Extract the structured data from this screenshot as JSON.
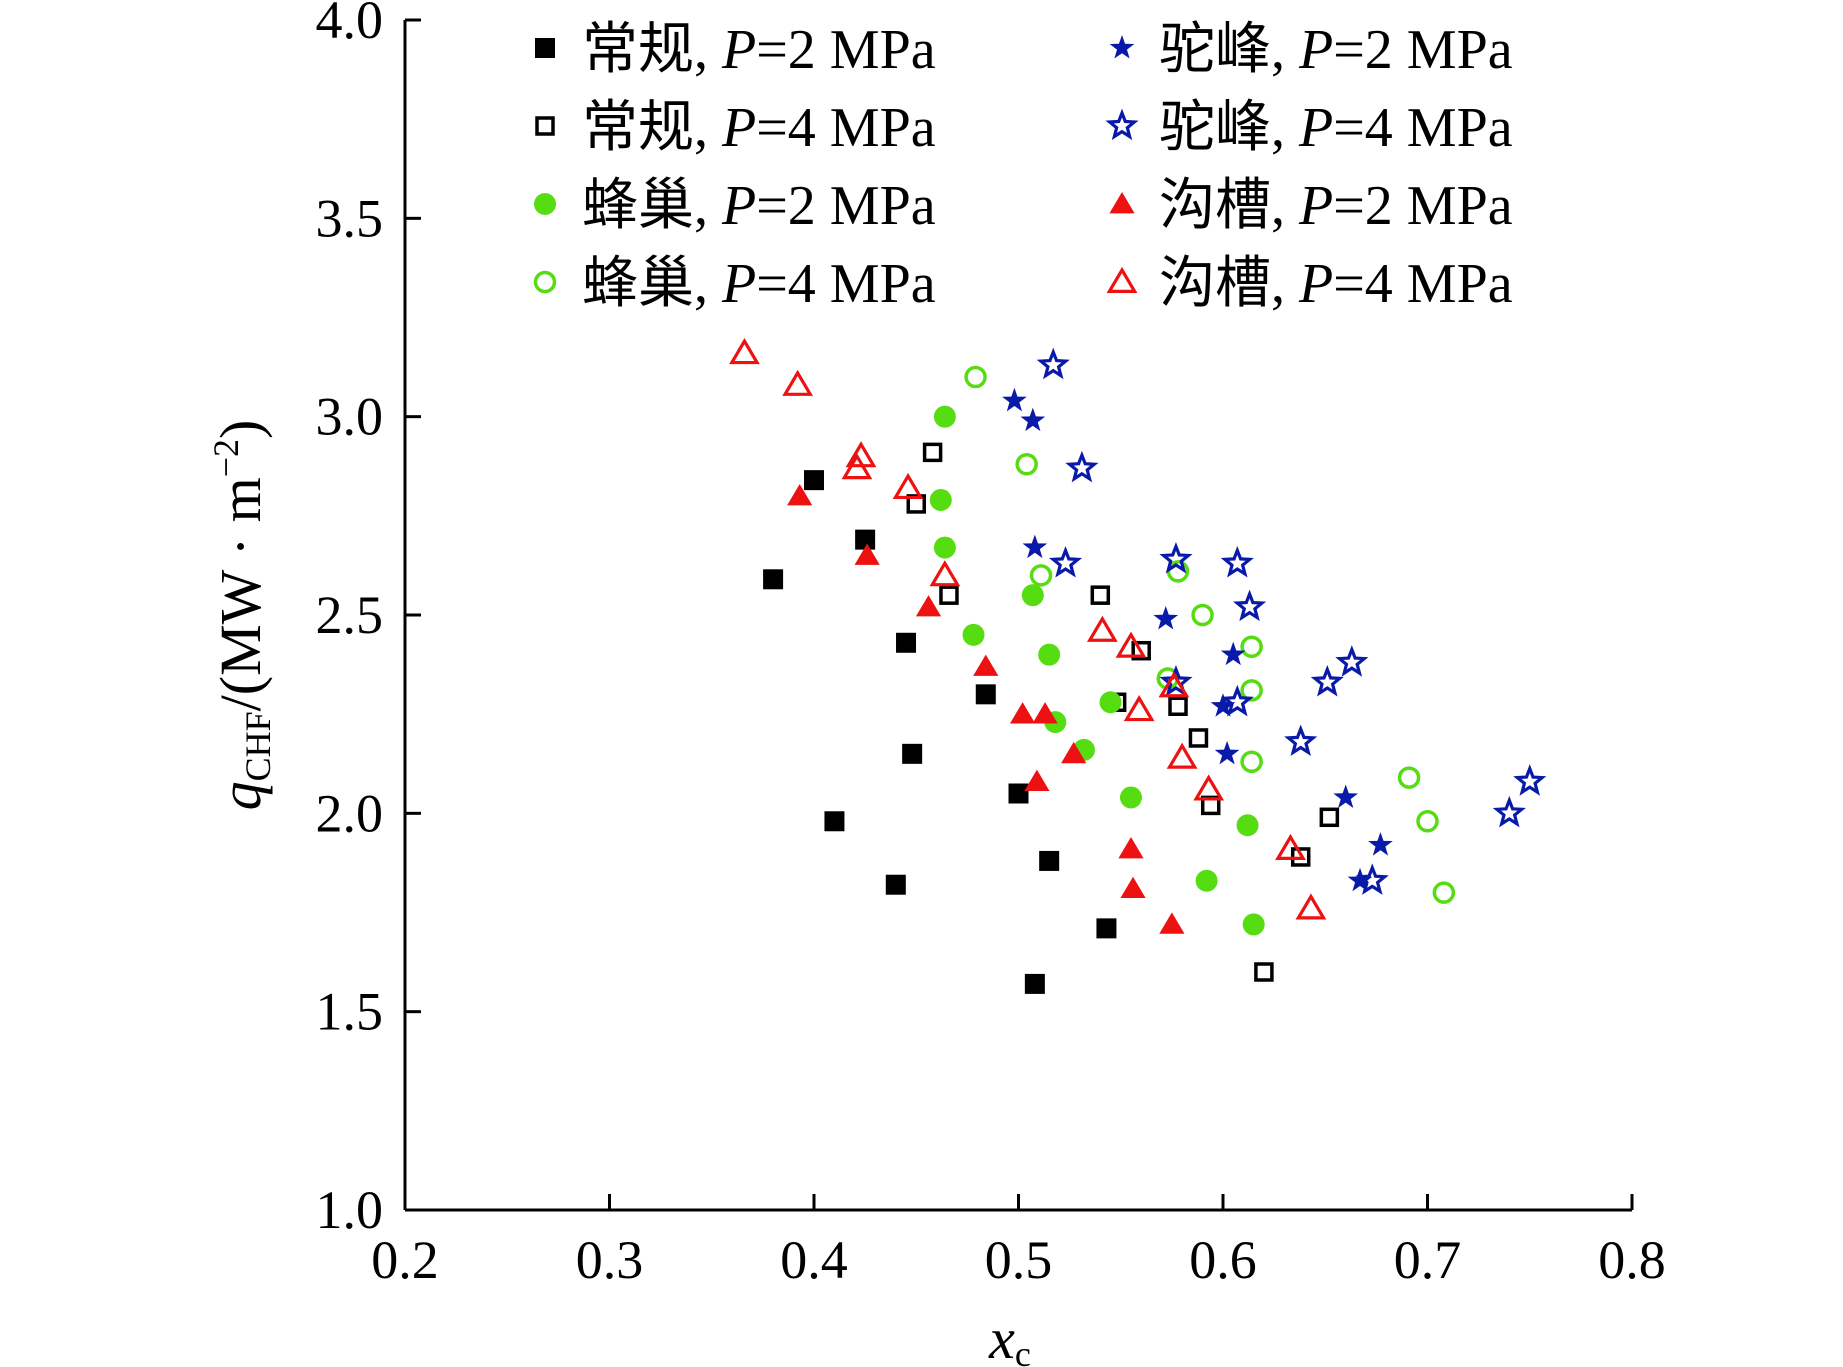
{
  "chart_data": {
    "type": "scatter",
    "title": "",
    "xlabel": {
      "base": "x",
      "sub": "c"
    },
    "ylabel": {
      "q": "q",
      "sub": "CHF",
      "unit_open": "/(MW · m",
      "exp": "−2",
      "unit_close": ")"
    },
    "xlim": [
      0.2,
      0.8
    ],
    "ylim": [
      1.0,
      4.0
    ],
    "x_ticks": [
      0.2,
      0.3,
      0.4,
      0.5,
      0.6,
      0.7,
      0.8
    ],
    "x_tick_labels": [
      "0.2",
      "0.3",
      "0.4",
      "0.5",
      "0.6",
      "0.7",
      "0.8"
    ],
    "y_ticks": [
      1.0,
      1.5,
      2.0,
      2.5,
      3.0,
      3.5,
      4.0
    ],
    "y_tick_labels": [
      "1.0",
      "1.5",
      "2.0",
      "2.5",
      "3.0",
      "3.5",
      "4.0"
    ],
    "grid": false,
    "legend_position": "top-right",
    "series": [
      {
        "name": "常规, P=2 MPa",
        "label_prefix": "常规, ",
        "label_p": "P",
        "label_suffix": "=2 MPa",
        "marker": "square",
        "filled": true,
        "color": "#000000",
        "points": [
          [
            0.38,
            2.59
          ],
          [
            0.4,
            2.84
          ],
          [
            0.41,
            1.98
          ],
          [
            0.425,
            2.69
          ],
          [
            0.44,
            1.82
          ],
          [
            0.445,
            2.43
          ],
          [
            0.448,
            2.15
          ],
          [
            0.484,
            2.3
          ],
          [
            0.5,
            2.05
          ],
          [
            0.508,
            1.57
          ],
          [
            0.515,
            1.88
          ],
          [
            0.543,
            1.71
          ]
        ]
      },
      {
        "name": "常规, P=4 MPa",
        "label_prefix": "常规, ",
        "label_p": "P",
        "label_suffix": "=4 MPa",
        "marker": "square",
        "filled": false,
        "color": "#000000",
        "points": [
          [
            0.458,
            2.91
          ],
          [
            0.45,
            2.78
          ],
          [
            0.466,
            2.55
          ],
          [
            0.54,
            2.55
          ],
          [
            0.56,
            2.41
          ],
          [
            0.548,
            2.28
          ],
          [
            0.578,
            2.27
          ],
          [
            0.588,
            2.19
          ],
          [
            0.594,
            2.02
          ],
          [
            0.638,
            1.89
          ],
          [
            0.652,
            1.99
          ],
          [
            0.62,
            1.6
          ]
        ]
      },
      {
        "name": "蜂巢, P=2 MPa",
        "label_prefix": "蜂巢, ",
        "label_p": "P",
        "label_suffix": "=2 MPa",
        "marker": "circle",
        "filled": true,
        "color": "#55dd11",
        "points": [
          [
            0.464,
            3.0
          ],
          [
            0.462,
            2.79
          ],
          [
            0.464,
            2.67
          ],
          [
            0.478,
            2.45
          ],
          [
            0.507,
            2.55
          ],
          [
            0.515,
            2.4
          ],
          [
            0.518,
            2.23
          ],
          [
            0.532,
            2.16
          ],
          [
            0.545,
            2.28
          ],
          [
            0.555,
            2.04
          ],
          [
            0.592,
            1.83
          ],
          [
            0.612,
            1.97
          ],
          [
            0.615,
            1.72
          ]
        ]
      },
      {
        "name": "蜂巢, P=4 MPa",
        "label_prefix": "蜂巢, ",
        "label_p": "P",
        "label_suffix": "=4 MPa",
        "marker": "circle",
        "filled": false,
        "color": "#55dd11",
        "points": [
          [
            0.479,
            3.1
          ],
          [
            0.504,
            2.88
          ],
          [
            0.511,
            2.6
          ],
          [
            0.578,
            2.61
          ],
          [
            0.59,
            2.5
          ],
          [
            0.573,
            2.34
          ],
          [
            0.614,
            2.42
          ],
          [
            0.614,
            2.31
          ],
          [
            0.614,
            2.13
          ],
          [
            0.691,
            2.09
          ],
          [
            0.7,
            1.98
          ],
          [
            0.708,
            1.8
          ]
        ]
      },
      {
        "name": "驼峰, P=2 MPa",
        "label_prefix": "驼峰, ",
        "label_p": "P",
        "label_suffix": "=2 MPa",
        "marker": "star",
        "filled": true,
        "color": "#0a1aa8",
        "points": [
          [
            0.498,
            3.04
          ],
          [
            0.507,
            2.99
          ],
          [
            0.508,
            2.67
          ],
          [
            0.572,
            2.49
          ],
          [
            0.605,
            2.4
          ],
          [
            0.6,
            2.27
          ],
          [
            0.602,
            2.15
          ],
          [
            0.66,
            2.04
          ],
          [
            0.677,
            1.92
          ],
          [
            0.667,
            1.83
          ]
        ]
      },
      {
        "name": "驼峰, P=4 MPa",
        "label_prefix": "驼峰, ",
        "label_p": "P",
        "label_suffix": "=4 MPa",
        "marker": "star",
        "filled": false,
        "color": "#0a1aa8",
        "points": [
          [
            0.517,
            3.13
          ],
          [
            0.531,
            2.87
          ],
          [
            0.523,
            2.63
          ],
          [
            0.577,
            2.64
          ],
          [
            0.607,
            2.63
          ],
          [
            0.613,
            2.52
          ],
          [
            0.577,
            2.33
          ],
          [
            0.607,
            2.28
          ],
          [
            0.663,
            2.38
          ],
          [
            0.651,
            2.33
          ],
          [
            0.638,
            2.18
          ],
          [
            0.673,
            1.83
          ],
          [
            0.74,
            2.0
          ],
          [
            0.75,
            2.08
          ]
        ]
      },
      {
        "name": "沟槽, P=2 MPa",
        "label_prefix": "沟槽, ",
        "label_p": "P",
        "label_suffix": "=2 MPa",
        "marker": "triangle",
        "filled": true,
        "color": "#ee1111",
        "points": [
          [
            0.393,
            2.8
          ],
          [
            0.426,
            2.65
          ],
          [
            0.456,
            2.52
          ],
          [
            0.484,
            2.37
          ],
          [
            0.502,
            2.25
          ],
          [
            0.513,
            2.25
          ],
          [
            0.527,
            2.15
          ],
          [
            0.509,
            2.08
          ],
          [
            0.555,
            1.91
          ],
          [
            0.556,
            1.81
          ],
          [
            0.575,
            1.72
          ]
        ]
      },
      {
        "name": "沟槽, P=4 MPa",
        "label_prefix": "沟槽, ",
        "label_p": "P",
        "label_suffix": "=4 MPa",
        "marker": "triangle",
        "filled": false,
        "color": "#ee1111",
        "points": [
          [
            0.366,
            3.16
          ],
          [
            0.392,
            3.08
          ],
          [
            0.423,
            2.9
          ],
          [
            0.421,
            2.87
          ],
          [
            0.446,
            2.82
          ],
          [
            0.464,
            2.6
          ],
          [
            0.541,
            2.46
          ],
          [
            0.555,
            2.42
          ],
          [
            0.559,
            2.26
          ],
          [
            0.576,
            2.32
          ],
          [
            0.58,
            2.14
          ],
          [
            0.593,
            2.06
          ],
          [
            0.633,
            1.91
          ],
          [
            0.643,
            1.76
          ]
        ]
      }
    ]
  }
}
